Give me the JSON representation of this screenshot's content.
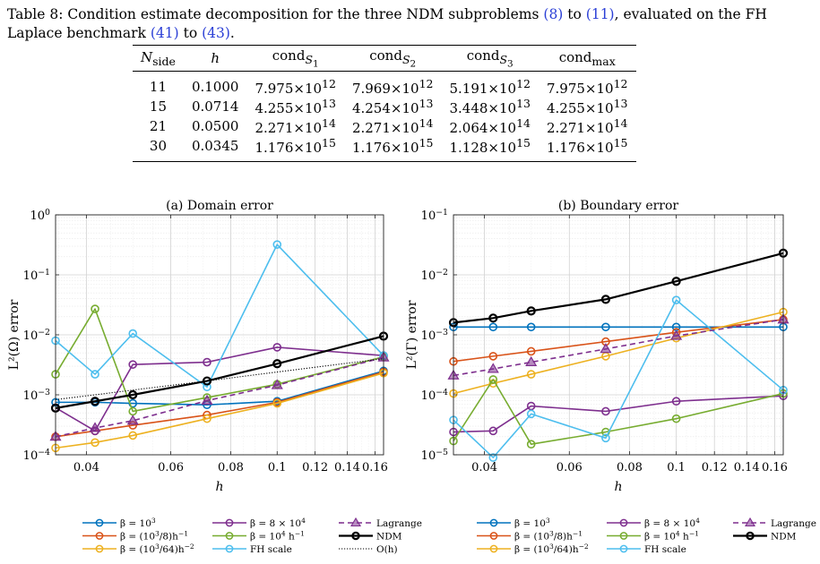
{
  "caption": {
    "lead": "Table 8: Condition estimate decomposition for the three NDM subproblems ",
    "ref1": "(8)",
    "mid1": " to ",
    "ref2": "(11)",
    "mid2": ", evaluated on the FH Laplace benchmark ",
    "ref3": "(41)",
    "mid3": " to ",
    "ref4": "(43)",
    "end": "."
  },
  "table": {
    "headers": [
      "Nside",
      "h",
      "condS1",
      "condS2",
      "condS3",
      "condmax"
    ],
    "header_html": [
      "<i>N</i><sub>side</sub>",
      "<i>h</i>",
      "cond<sub><i>S</i><sub>1</sub></sub>",
      "cond<sub><i>S</i><sub>2</sub></sub>",
      "cond<sub><i>S</i><sub>3</sub></sub>",
      "cond<sub>max</sub>"
    ],
    "rows": [
      [
        "11",
        "0.1000",
        "7.975×10^12",
        "7.969×10^12",
        "5.191×10^12",
        "7.975×10^12"
      ],
      [
        "15",
        "0.0714",
        "4.255×10^13",
        "4.254×10^13",
        "3.448×10^13",
        "4.255×10^13"
      ],
      [
        "21",
        "0.0500",
        "2.271×10^14",
        "2.271×10^14",
        "2.064×10^14",
        "2.271×10^14"
      ],
      [
        "30",
        "0.0345",
        "1.176×10^15",
        "1.176×10^15",
        "1.128×10^15",
        "1.176×10^15"
      ]
    ]
  },
  "chart_data": [
    {
      "type": "line",
      "title": "(a) Domain error",
      "xlabel": "h",
      "ylabel": "L²(Ω) error",
      "xscale": "log",
      "yscale": "log",
      "xlim": [
        0.0345,
        0.1667
      ],
      "ylim": [
        0.0001,
        1
      ],
      "xticks": [
        0.04,
        0.06,
        0.08,
        0.1,
        0.12,
        0.14,
        0.16
      ],
      "xtick_labels": [
        "0.04",
        "0.06",
        "0.08",
        "0.1",
        "0.12",
        "0.14",
        "0.16"
      ],
      "yticks": [
        0.0001,
        0.001,
        0.01,
        0.1,
        1
      ],
      "ytick_labels": [
        "10^-4",
        "10^-3",
        "10^-2",
        "10^-1",
        "10^0"
      ],
      "grid": true,
      "x": [
        0.0345,
        0.0417,
        0.05,
        0.0714,
        0.1,
        0.1667
      ],
      "series": [
        {
          "name": "β = 10^3",
          "color": "#0072bd",
          "marker": "circle",
          "values": [
            0.00075,
            0.00075,
            0.00072,
            0.00068,
            0.00078,
            0.0025
          ]
        },
        {
          "name": "β = (10^3/8)h^-1",
          "color": "#d95319",
          "marker": "circle",
          "values": [
            0.0002,
            0.00025,
            0.00031,
            0.00046,
            0.00075,
            0.0024
          ]
        },
        {
          "name": "β = (10^3/64)h^-2",
          "color": "#edb120",
          "marker": "circle",
          "values": [
            0.00013,
            0.00016,
            0.00021,
            0.0004,
            0.00072,
            0.0023
          ]
        },
        {
          "name": "β = 8 × 10^4",
          "color": "#7e2f8e",
          "marker": "circle",
          "values": [
            0.00061,
            0.00025,
            0.0032,
            0.0035,
            0.0062,
            0.0045
          ]
        },
        {
          "name": "β = 10^4 h^-1",
          "color": "#77ac30",
          "marker": "circle",
          "values": [
            0.0022,
            0.027,
            0.00053,
            0.0009,
            0.0015,
            0.0043
          ]
        },
        {
          "name": "FH scale",
          "color": "#4dbeee",
          "marker": "circle",
          "values": [
            0.008,
            0.0022,
            0.0105,
            0.00135,
            0.32,
            0.0045
          ]
        },
        {
          "name": "Lagrange",
          "color": "#7e2f8e",
          "marker": "triangle",
          "dash": true,
          "values": [
            0.0002,
            0.00028,
            0.00037,
            0.0008,
            0.00145,
            0.0042
          ]
        },
        {
          "name": "NDM",
          "color": "#000000",
          "marker": "circle",
          "width": 2.2,
          "values": [
            0.0006,
            0.00078,
            0.001,
            0.0017,
            0.0033,
            0.0095
          ]
        },
        {
          "name": "O(h)",
          "color": "#000000",
          "marker": "none",
          "dotted": true,
          "values": [
            0.00083,
            0.001,
            0.0012,
            0.0017,
            0.0024,
            0.004
          ]
        }
      ]
    },
    {
      "type": "line",
      "title": "(b) Boundary error",
      "xlabel": "h",
      "ylabel": "L²(Γ) error",
      "xscale": "log",
      "yscale": "log",
      "xlim": [
        0.0345,
        0.1667
      ],
      "ylim": [
        1e-05,
        0.1
      ],
      "xticks": [
        0.04,
        0.06,
        0.08,
        0.1,
        0.12,
        0.14,
        0.16
      ],
      "xtick_labels": [
        "0.04",
        "0.06",
        "0.08",
        "0.1",
        "0.12",
        "0.14",
        "0.16"
      ],
      "yticks": [
        1e-05,
        0.0001,
        0.001,
        0.01,
        0.1
      ],
      "ytick_labels": [
        "10^-5",
        "10^-4",
        "10^-3",
        "10^-2",
        "10^-1"
      ],
      "grid": true,
      "x": [
        0.0345,
        0.0417,
        0.05,
        0.0714,
        0.1,
        0.1667
      ],
      "series": [
        {
          "name": "β = 10^3",
          "color": "#0072bd",
          "marker": "circle",
          "values": [
            0.00135,
            0.00135,
            0.00135,
            0.00135,
            0.00135,
            0.00135
          ]
        },
        {
          "name": "β = (10^3/8)h^-1",
          "color": "#d95319",
          "marker": "circle",
          "values": [
            0.00036,
            0.00044,
            0.00053,
            0.00077,
            0.0011,
            0.0018
          ]
        },
        {
          "name": "β = (10^3/64)h^-2",
          "color": "#edb120",
          "marker": "circle",
          "values": [
            0.000105,
            0.000155,
            0.00022,
            0.00044,
            0.00088,
            0.0024
          ]
        },
        {
          "name": "β = 8 × 10^4",
          "color": "#7e2f8e",
          "marker": "circle",
          "values": [
            2.4e-05,
            2.5e-05,
            6.5e-05,
            5.3e-05,
            7.8e-05,
            9.6e-05
          ]
        },
        {
          "name": "β = 10^4 h^-1",
          "color": "#77ac30",
          "marker": "circle",
          "values": [
            1.7e-05,
            0.00018,
            1.5e-05,
            2.4e-05,
            4e-05,
            0.000105
          ]
        },
        {
          "name": "FH scale",
          "color": "#4dbeee",
          "marker": "circle",
          "values": [
            3.8e-05,
            9e-06,
            4.8e-05,
            1.9e-05,
            0.0038,
            0.00012
          ]
        },
        {
          "name": "Lagrange",
          "color": "#7e2f8e",
          "marker": "triangle",
          "dash": true,
          "values": [
            0.00021,
            0.00027,
            0.00035,
            0.00058,
            0.00096,
            0.0018
          ]
        },
        {
          "name": "NDM",
          "color": "#000000",
          "marker": "circle",
          "width": 2.2,
          "values": [
            0.0016,
            0.0019,
            0.0025,
            0.0039,
            0.0078,
            0.023
          ]
        }
      ]
    }
  ]
}
